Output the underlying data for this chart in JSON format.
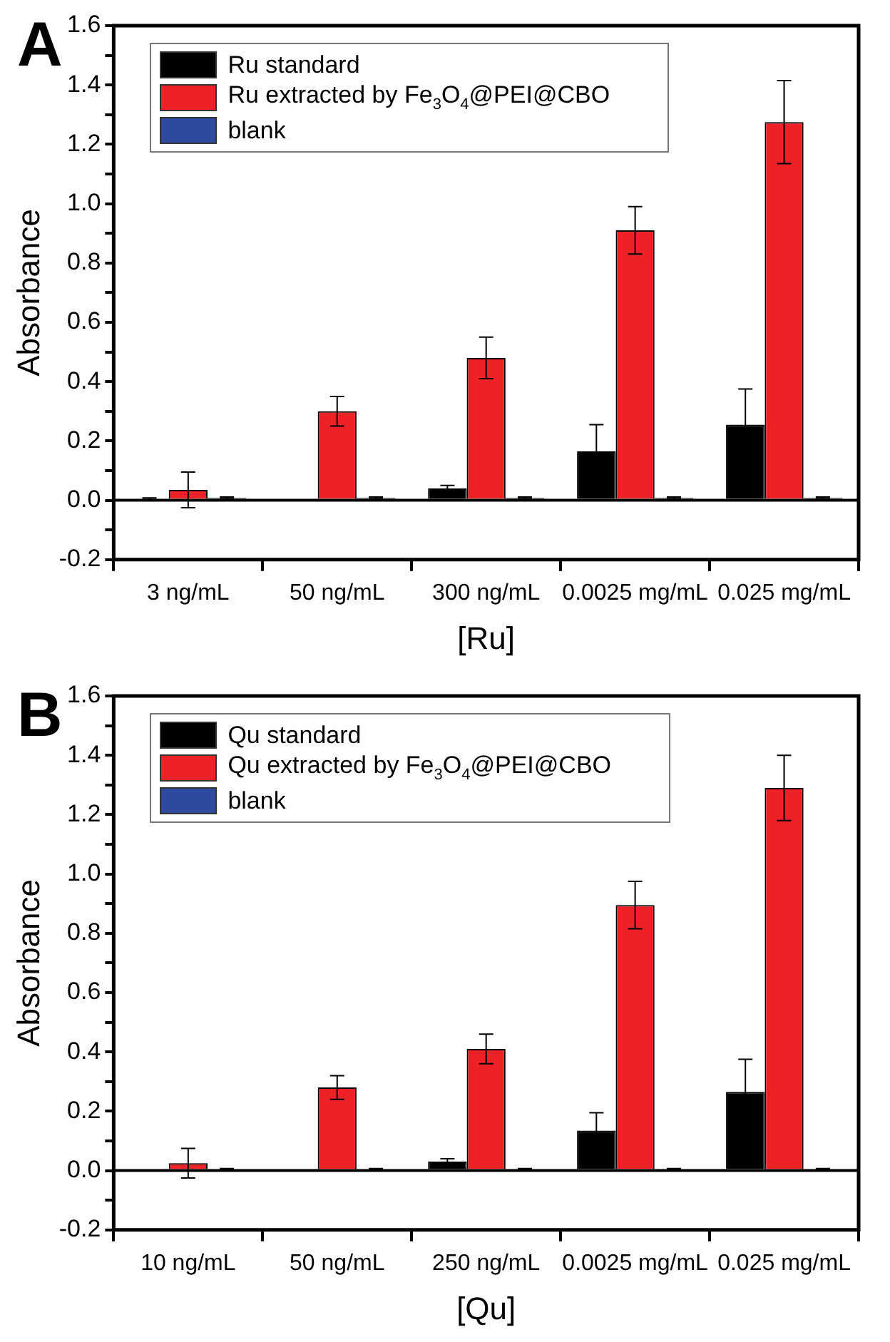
{
  "chart_data": [
    {
      "type": "bar",
      "title": "A",
      "xlabel": "[Ru]",
      "ylabel": "Absorbance",
      "categories": [
        "3 ng/mL",
        "50 ng/mL",
        "300 ng/mL",
        "0.0025 mg/mL",
        "0.025 mg/mL"
      ],
      "series": [
        {
          "name": "Ru standard",
          "color": "#000000",
          "values": [
            0.005,
            null,
            0.04,
            0.165,
            0.255
          ],
          "errors": [
            0.003,
            null,
            0.01,
            0.09,
            0.12
          ]
        },
        {
          "name": "Ru extracted by Fe$_{3}$O$_{4}$@PEI@CBO",
          "color": "#ec2227",
          "values": [
            0.035,
            0.3,
            0.48,
            0.91,
            1.275
          ],
          "errors": [
            0.06,
            0.05,
            0.07,
            0.08,
            0.14
          ]
        },
        {
          "name": "blank",
          "color": "#2e4a9e",
          "values": [
            0.008,
            0.008,
            0.008,
            0.008,
            0.008
          ],
          "errors": [
            0.003,
            0.003,
            0.003,
            0.003,
            0.003
          ]
        }
      ],
      "ylim": [
        -0.2,
        1.6
      ],
      "yticks": [
        {
          "value": -0.2,
          "label": "-0.2"
        },
        {
          "value": -0.1,
          "label": null
        },
        {
          "value": 0,
          "label": "0.0"
        },
        {
          "value": 0.1,
          "label": null
        },
        0.2,
        {
          "value": 0.3,
          "label": null
        },
        0.4,
        {
          "value": 0.5,
          "label": null
        },
        0.6,
        {
          "value": 0.7,
          "label": null
        },
        0.8,
        {
          "value": 0.9,
          "label": null
        },
        {
          "value": 1,
          "label": "1.0"
        },
        {
          "value": 1.1,
          "label": null
        },
        1.2,
        {
          "value": 1.3,
          "label": null
        },
        1.4,
        {
          "value": 1.5,
          "label": null
        },
        1.6
      ],
      "ref_lines": [
        {
          "axis": "y",
          "value": 0,
          "color": "#000000"
        }
      ],
      "grid": false,
      "legend": "top left"
    },
    {
      "type": "bar",
      "title": "B",
      "xlabel": "[Qu]",
      "ylabel": "Absorbance",
      "categories": [
        "10 ng/mL",
        "50 ng/mL",
        "250 ng/mL",
        "0.0025 mg/mL",
        "0.025 mg/mL"
      ],
      "series": [
        {
          "name": "Qu standard",
          "color": "#000000",
          "values": [
            null,
            null,
            0.03,
            0.135,
            0.265
          ],
          "errors": [
            null,
            null,
            0.01,
            0.06,
            0.11
          ]
        },
        {
          "name": "Qu extracted by Fe$_{3}$O$_{4}$@PEI@CBO",
          "color": "#ec2227",
          "values": [
            0.025,
            0.28,
            0.41,
            0.895,
            1.29
          ],
          "errors": [
            0.05,
            0.04,
            0.05,
            0.08,
            0.11
          ]
        },
        {
          "name": "blank",
          "color": "#2e4a9e",
          "values": [
            0.005,
            0.005,
            0.005,
            0.005,
            0.005
          ],
          "errors": [
            0.002,
            0.002,
            0.002,
            0.002,
            0.002
          ]
        }
      ],
      "ylim": [
        -0.2,
        1.6
      ],
      "yticks": [
        {
          "value": -0.2,
          "label": "-0.2"
        },
        {
          "value": -0.1,
          "label": null
        },
        {
          "value": 0,
          "label": "0.0"
        },
        {
          "value": 0.1,
          "label": null
        },
        0.2,
        {
          "value": 0.3,
          "label": null
        },
        0.4,
        {
          "value": 0.5,
          "label": null
        },
        0.6,
        {
          "value": 0.7,
          "label": null
        },
        0.8,
        {
          "value": 0.9,
          "label": null
        },
        {
          "value": 1,
          "label": "1.0"
        },
        {
          "value": 1.1,
          "label": null
        },
        1.2,
        {
          "value": 1.3,
          "label": null
        },
        1.4,
        {
          "value": 1.5,
          "label": null
        },
        1.6
      ],
      "ref_lines": [
        {
          "axis": "y",
          "value": 0,
          "color": "#000000"
        }
      ],
      "grid": false,
      "legend": "top left"
    }
  ]
}
